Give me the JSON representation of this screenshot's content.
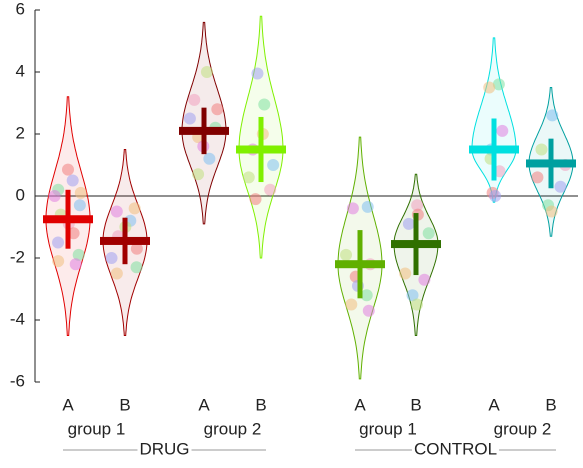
{
  "chart_data": {
    "type": "violin",
    "categories": [
      "A",
      "B",
      "A",
      "B",
      "A",
      "B",
      "A",
      "B"
    ],
    "groups": [
      "group 1",
      "group 2",
      "group 1",
      "group 2"
    ],
    "supergroups": [
      "DRUG",
      "CONTROL"
    ],
    "ylim": [
      -6,
      6
    ],
    "yticks": [
      -6,
      -4,
      -2,
      0,
      2,
      4,
      6
    ],
    "zero_line": true,
    "point_colors": [
      "#f08080",
      "#a0a0f0",
      "#80e0a0",
      "#f0c080",
      "#e080e0",
      "#80c0f0",
      "#c0e080",
      "#f0a0c0"
    ],
    "violins": [
      {
        "color": "#e00000",
        "mean": -0.75,
        "error": 0.95,
        "min": -4.5,
        "max": 3.2,
        "points": [
          0.85,
          0.5,
          0.2,
          0.1,
          0,
          -0.3,
          -0.6,
          -0.9,
          -1.2,
          -1.5,
          -1.9,
          -2.1,
          -2.2
        ]
      },
      {
        "color": "#a00000",
        "mean": -1.45,
        "error": 0.75,
        "min": -4.5,
        "max": 1.5,
        "points": [
          -0.4,
          -0.5,
          -0.8,
          -1.0,
          -1.3,
          -1.7,
          -2.0,
          -2.3,
          -2.5
        ]
      },
      {
        "color": "#800000",
        "mean": 2.1,
        "error": 0.75,
        "min": -0.9,
        "max": 5.6,
        "points": [
          4.0,
          3.1,
          2.8,
          2.5,
          2.2,
          1.9,
          1.6,
          1.2,
          0.7
        ]
      },
      {
        "color": "#80f000",
        "mean": 1.5,
        "error": 1.05,
        "min": -2.0,
        "max": 5.8,
        "points": [
          3.95,
          2.95,
          2.0,
          1.5,
          1.0,
          0.6,
          0.2,
          -0.1
        ]
      },
      {
        "color": "#60b000",
        "mean": -2.2,
        "error": 1.1,
        "min": -5.9,
        "max": 1.9,
        "points": [
          -0.4,
          -0.35,
          -1.9,
          -2.2,
          -2.6,
          -2.9,
          -3.2,
          -3.5,
          -3.7
        ]
      },
      {
        "color": "#307000",
        "mean": -1.55,
        "error": 1.0,
        "min": -4.5,
        "max": 0.7,
        "points": [
          -0.3,
          -0.6,
          -0.9,
          -1.2,
          -2.5,
          -2.7,
          -3.2,
          -3.5
        ]
      },
      {
        "color": "#00e0e0",
        "mean": 1.5,
        "error": 1.0,
        "min": -0.2,
        "max": 5.1,
        "points": [
          3.6,
          3.5,
          2.1,
          1.5,
          1.2,
          0.8,
          0.1,
          0
        ]
      },
      {
        "color": "#00a0a0",
        "mean": 1.05,
        "error": 0.8,
        "min": -1.3,
        "max": 3.5,
        "points": [
          2.6,
          1.5,
          1.0,
          0.6,
          0.3,
          -0.3,
          -0.5
        ]
      }
    ]
  }
}
